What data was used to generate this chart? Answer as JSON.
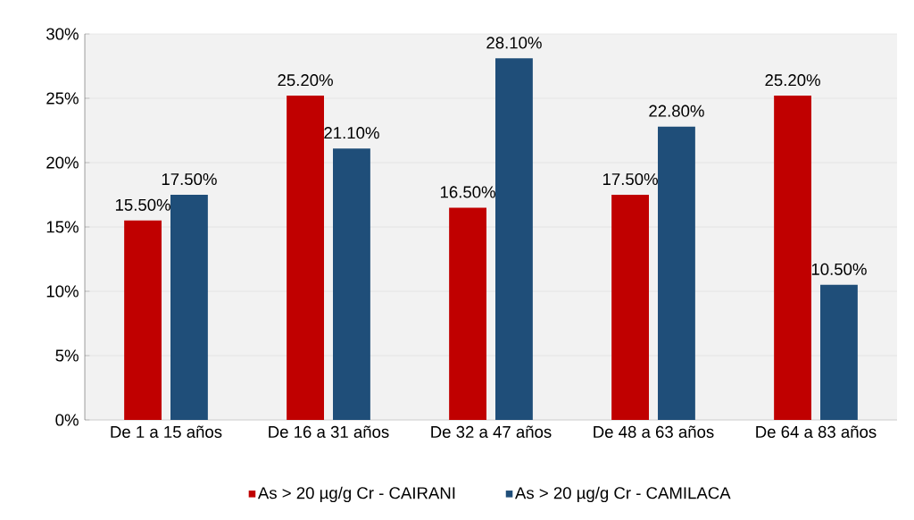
{
  "chart_data": {
    "type": "bar",
    "categories": [
      "De 1 a 15 años",
      "De 16 a 31 años",
      "De 32 a 47 años",
      "De 48 a 63 años",
      "De 64 a 83 años"
    ],
    "series": [
      {
        "name": "As > 20 µg/g Cr - CAIRANI",
        "color": "#c00000",
        "values": [
          15.5,
          25.2,
          16.5,
          17.5,
          25.2
        ],
        "value_labels": [
          "15.50%",
          "25.20%",
          "16.50%",
          "17.50%",
          "25.20%"
        ]
      },
      {
        "name": "As > 20 µg/g Cr - CAMILACA",
        "color": "#1f4e79",
        "values": [
          17.5,
          21.1,
          28.1,
          22.8,
          10.5
        ],
        "value_labels": [
          "17.50%",
          "21.10%",
          "28.10%",
          "22.80%",
          "10.50%"
        ]
      }
    ],
    "ylim": [
      0,
      30
    ],
    "yticks": [
      {
        "value": 0,
        "label": "0%"
      },
      {
        "value": 5,
        "label": "5%"
      },
      {
        "value": 10,
        "label": "10%"
      },
      {
        "value": 15,
        "label": "15%"
      },
      {
        "value": 20,
        "label": "20%"
      },
      {
        "value": 25,
        "label": "25%"
      },
      {
        "value": 30,
        "label": "30%"
      }
    ],
    "grid": "y",
    "legend": "bottom"
  }
}
